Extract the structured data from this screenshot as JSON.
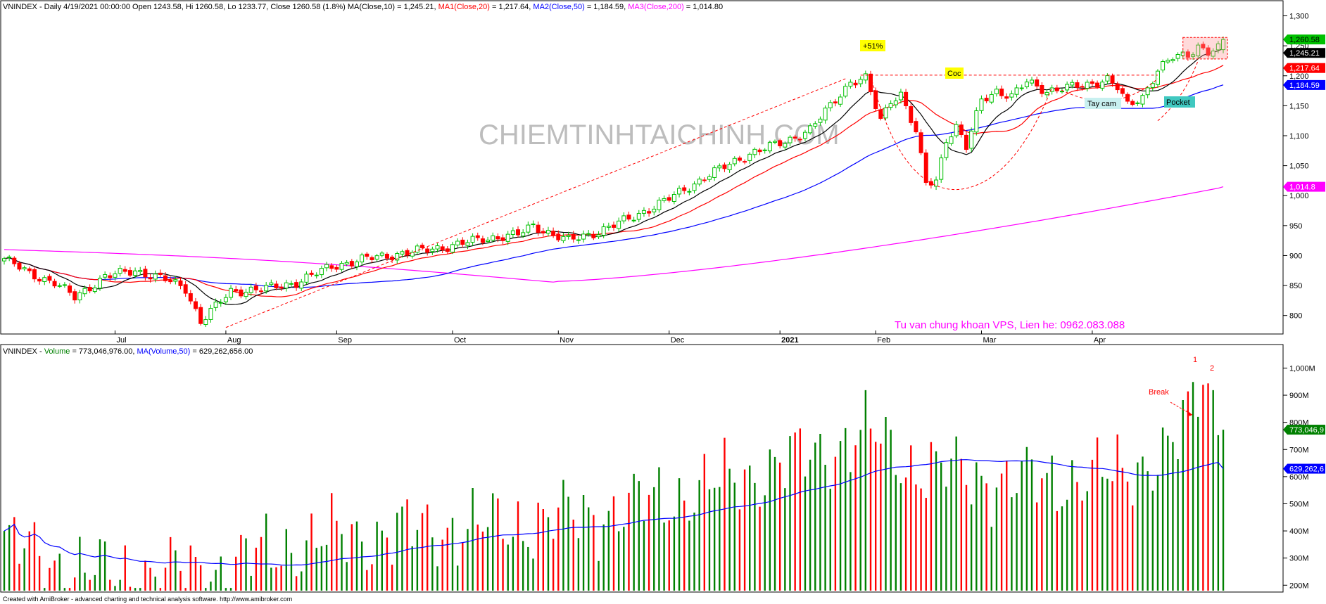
{
  "header": {
    "price_prefix": "VNINDEX - Daily 4/19/2021 00:00:00 Open 1243.58, Hi 1260.58, Lo 1233.77, Close 1260.58 (1.8%)",
    "ma10": "MA(Close,10) = 1,245.21,",
    "ma20": "MA1(Close,20)",
    "ma20_val": "= 1,217.64,",
    "ma50": "MA2(Close,50)",
    "ma50_val": "= 1,184.59,",
    "ma200": "MA3(Close,200)",
    "ma200_val": "= 1,014.80",
    "vol_prefix": "VNINDEX - ",
    "vol_name": "Volume",
    "vol_val": "= 773,046,976.00,",
    "vol_ma": "MA(Volume,50)",
    "vol_ma_val": "= 629,262,656.00"
  },
  "watermark": "CHIEMTINHTAICHINH.COM",
  "advert": "Tu van chung khoan VPS, Lien he: 0962.083.088",
  "footer": "Created with AmiBroker - advanced charting and technical analysis software. http://www.amibroker.com",
  "colors": {
    "up": "#00c000",
    "down": "#ff0000",
    "ma10": "#000000",
    "ma20": "#ff0000",
    "ma50": "#0000ff",
    "ma200": "#ff00ff",
    "vol_up": "#008000",
    "vol_down": "#ff0000"
  },
  "chart_data": [
    {
      "type": "candlestick",
      "title": "VNINDEX - Daily",
      "x_ticks": [
        "Jul",
        "Aug",
        "Sep",
        "Oct",
        "Nov",
        "Dec",
        "2021",
        "Feb",
        "Mar",
        "Apr"
      ],
      "y_ticks": [
        "800",
        "850",
        "900",
        "950",
        "1,000",
        "1,050",
        "1,100",
        "1,150",
        "1,200",
        "1,250",
        "1,300"
      ],
      "ylim": [
        775,
        1310
      ],
      "last": {
        "open": 1243.58,
        "high": 1260.58,
        "low": 1233.77,
        "close": 1260.58,
        "change": "1.8%"
      },
      "anchors": [
        {
          "i": 0,
          "c": 895
        },
        {
          "i": 5,
          "c": 870
        },
        {
          "i": 10,
          "c": 855
        },
        {
          "i": 14,
          "c": 830
        },
        {
          "i": 20,
          "c": 865
        },
        {
          "i": 26,
          "c": 875
        },
        {
          "i": 32,
          "c": 860
        },
        {
          "i": 36,
          "c": 845
        },
        {
          "i": 39,
          "c": 790
        },
        {
          "i": 45,
          "c": 840
        },
        {
          "i": 52,
          "c": 845
        },
        {
          "i": 58,
          "c": 855
        },
        {
          "i": 65,
          "c": 882
        },
        {
          "i": 72,
          "c": 895
        },
        {
          "i": 80,
          "c": 905
        },
        {
          "i": 88,
          "c": 915
        },
        {
          "i": 95,
          "c": 928
        },
        {
          "i": 102,
          "c": 935
        },
        {
          "i": 105,
          "c": 950
        },
        {
          "i": 109,
          "c": 935
        },
        {
          "i": 112,
          "c": 925
        },
        {
          "i": 118,
          "c": 940
        },
        {
          "i": 125,
          "c": 965
        },
        {
          "i": 132,
          "c": 995
        },
        {
          "i": 140,
          "c": 1035
        },
        {
          "i": 148,
          "c": 1070
        },
        {
          "i": 155,
          "c": 1090
        },
        {
          "i": 160,
          "c": 1110
        },
        {
          "i": 164,
          "c": 1150
        },
        {
          "i": 168,
          "c": 1190
        },
        {
          "i": 171,
          "c": 1195
        },
        {
          "i": 174,
          "c": 1125
        },
        {
          "i": 176,
          "c": 1160
        },
        {
          "i": 178,
          "c": 1170
        },
        {
          "i": 181,
          "c": 1105
        },
        {
          "i": 183,
          "c": 1020
        },
        {
          "i": 185,
          "c": 1025
        },
        {
          "i": 187,
          "c": 1095
        },
        {
          "i": 189,
          "c": 1115
        },
        {
          "i": 191,
          "c": 1080
        },
        {
          "i": 194,
          "c": 1160
        },
        {
          "i": 197,
          "c": 1175
        },
        {
          "i": 200,
          "c": 1165
        },
        {
          "i": 203,
          "c": 1190
        },
        {
          "i": 207,
          "c": 1175
        },
        {
          "i": 211,
          "c": 1180
        },
        {
          "i": 215,
          "c": 1185
        },
        {
          "i": 219,
          "c": 1195
        },
        {
          "i": 221,
          "c": 1180
        },
        {
          "i": 223,
          "c": 1150
        },
        {
          "i": 226,
          "c": 1165
        },
        {
          "i": 229,
          "c": 1210
        },
        {
          "i": 232,
          "c": 1230
        },
        {
          "i": 235,
          "c": 1235
        },
        {
          "i": 237,
          "c": 1250
        },
        {
          "i": 239,
          "c": 1240
        },
        {
          "i": 241,
          "c": 1245
        },
        {
          "i": 242,
          "c": 1260.58
        }
      ],
      "series": [
        {
          "name": "MA(Close,10)",
          "last": "1,245.21"
        },
        {
          "name": "MA1(Close,20)",
          "last": "1,217.64"
        },
        {
          "name": "MA2(Close,50)",
          "last": "1,184.59"
        },
        {
          "name": "MA3(Close,200)",
          "last": "1,014.8"
        }
      ],
      "badges": [
        {
          "label": "1,260.58",
          "value": 1260.58,
          "color": "#00c000"
        },
        {
          "label": "1,245.21",
          "value": 1245.21,
          "color": "#000000"
        },
        {
          "label": "1,217.64",
          "value": 1217.64,
          "color": "#ff0000"
        },
        {
          "label": "1,184.59",
          "value": 1184.59,
          "color": "#0000ff"
        },
        {
          "label": "1,014.8",
          "value": 1014.8,
          "color": "#ff00ff"
        }
      ],
      "annotations": [
        {
          "text": "+51%",
          "bg": "#ffff00"
        },
        {
          "text": "Coc",
          "bg": "#ffff00"
        },
        {
          "text": "Tay cam",
          "bg": "#c8f0f0"
        },
        {
          "text": "Pocket",
          "bg": "#40c8c0"
        }
      ]
    },
    {
      "type": "bar",
      "title": "VNINDEX - Volume",
      "y_ticks": [
        "200M",
        "300M",
        "400M",
        "500M",
        "600M",
        "700M",
        "800M",
        "900M",
        "1,000M"
      ],
      "ylim": [
        180,
        1040
      ],
      "unit": "M",
      "vol_anchors": [
        {
          "i": 0,
          "v": 360
        },
        {
          "i": 10,
          "v": 280
        },
        {
          "i": 20,
          "v": 240
        },
        {
          "i": 40,
          "v": 250
        },
        {
          "i": 60,
          "v": 360
        },
        {
          "i": 80,
          "v": 400
        },
        {
          "i": 100,
          "v": 420
        },
        {
          "i": 120,
          "v": 470
        },
        {
          "i": 140,
          "v": 560
        },
        {
          "i": 160,
          "v": 680
        },
        {
          "i": 172,
          "v": 760
        },
        {
          "i": 180,
          "v": 640
        },
        {
          "i": 200,
          "v": 580
        },
        {
          "i": 220,
          "v": 600
        },
        {
          "i": 232,
          "v": 700
        },
        {
          "i": 236,
          "v": 860
        },
        {
          "i": 238,
          "v": 980
        },
        {
          "i": 242,
          "v": 773
        }
      ],
      "series": [
        {
          "name": "Volume",
          "last": "773,046,9"
        },
        {
          "name": "MA(Volume,50)",
          "last": "629,262,6"
        }
      ],
      "annotations": [
        {
          "text": "Break",
          "color": "#ff0000"
        },
        {
          "text": "1",
          "color": "#ff0000"
        },
        {
          "text": "2",
          "color": "#ff0000"
        }
      ]
    }
  ]
}
